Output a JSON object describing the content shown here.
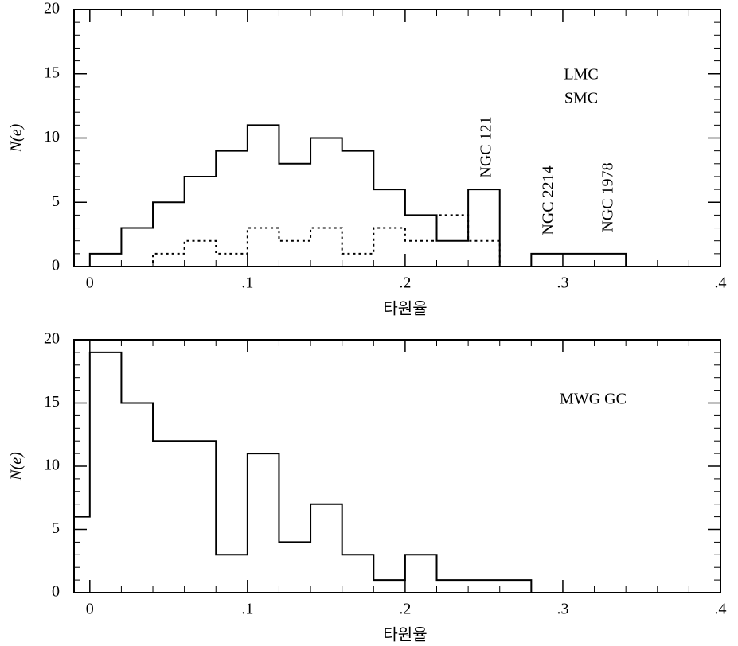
{
  "chart_data": [
    {
      "type": "histogram",
      "xlabel": "타원율",
      "ylabel": "N(e)",
      "bins": [
        0,
        0.02,
        0.04,
        0.06,
        0.08,
        0.1,
        0.12,
        0.14,
        0.16,
        0.18,
        0.2,
        0.22,
        0.24,
        0.26,
        0.28,
        0.3,
        0.32,
        0.34
      ],
      "series": [
        {
          "name": "LMC",
          "color": "#000000",
          "line_style": "solid",
          "values": [
            1,
            3,
            5,
            7,
            9,
            11,
            8,
            10,
            9,
            6,
            4,
            2,
            6,
            0,
            1,
            1,
            1
          ]
        },
        {
          "name": "SMC",
          "color": "#000000",
          "line_style": "dotted",
          "values": [
            0,
            0,
            1,
            2,
            1,
            3,
            2,
            3,
            1,
            3,
            2,
            4,
            2,
            0,
            0,
            0,
            0
          ]
        }
      ],
      "xlim": [
        -0.01,
        0.4
      ],
      "xticks": [
        0,
        {
          "value": 0.1,
          "label": ".1"
        },
        {
          "value": 0.2,
          "label": ".2"
        },
        {
          "value": 0.3,
          "label": ".3"
        },
        {
          "value": 0.4,
          "label": ".4"
        }
      ],
      "ylim": [
        0,
        20
      ],
      "yticks": [
        0,
        5,
        10,
        15,
        20
      ],
      "annotations": [
        "NGC 121",
        "NGC 2214",
        "NGC 1978"
      ]
    },
    {
      "type": "histogram",
      "xlabel": "타원율",
      "ylabel": "N(e)",
      "bins": [
        -0.01,
        0,
        0.02,
        0.04,
        0.06,
        0.08,
        0.1,
        0.12,
        0.14,
        0.16,
        0.18,
        0.2,
        0.22,
        0.24,
        0.26,
        0.28
      ],
      "series": [
        {
          "name": "MWG GC",
          "color": "#000000",
          "line_style": "solid",
          "values": [
            6,
            19,
            15,
            12,
            12,
            3,
            11,
            4,
            7,
            3,
            1,
            3,
            1,
            1,
            1
          ]
        }
      ],
      "xlim": [
        -0.01,
        0.4
      ],
      "xticks": [
        0,
        {
          "value": 0.1,
          "label": ".1"
        },
        {
          "value": 0.2,
          "label": ".2"
        },
        {
          "value": 0.3,
          "label": ".3"
        },
        {
          "value": 0.4,
          "label": ".4"
        }
      ],
      "ylim": [
        0,
        20
      ],
      "yticks": [
        0,
        5,
        10,
        15,
        20
      ]
    }
  ]
}
